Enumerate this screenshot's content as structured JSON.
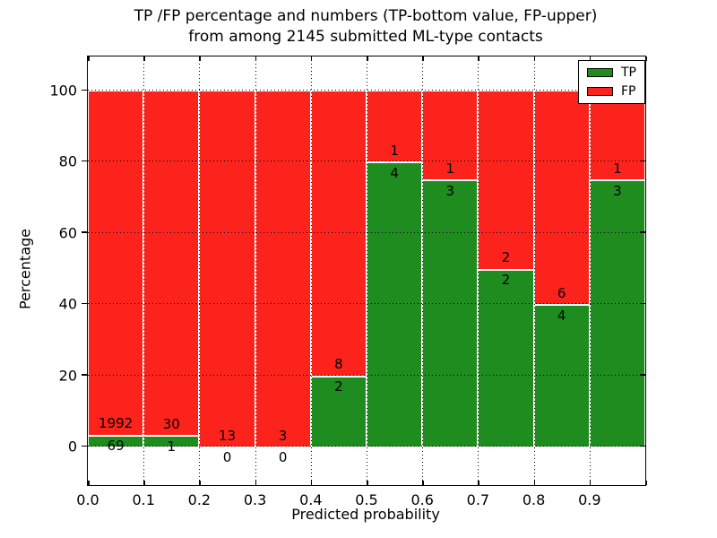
{
  "title": {
    "line1": "TP /FP percentage and numbers (TP-bottom value, FP-upper)",
    "line2": "from among 2145 submitted ML-type contacts"
  },
  "axes": {
    "xlabel": "Predicted probability",
    "ylabel": "Percentage",
    "yticks": [
      "0",
      "20",
      "40",
      "60",
      "80",
      "100"
    ],
    "ytick_values": [
      0,
      20,
      40,
      60,
      80,
      100
    ],
    "xticks": [
      "0.0",
      "0.1",
      "0.2",
      "0.3",
      "0.4",
      "0.5",
      "0.6",
      "0.7",
      "0.8",
      "0.9"
    ]
  },
  "legend": {
    "items": [
      {
        "label": "TP",
        "color": "#1f8c1f"
      },
      {
        "label": "FP",
        "color": "#fb231c"
      }
    ]
  },
  "colors": {
    "tp": "#1f8c1f",
    "fp": "#fb231c",
    "background": "#ffffff",
    "text": "#000000"
  },
  "chart_data": {
    "type": "bar",
    "stacked": true,
    "normalized_to_percent": true,
    "title": "TP /FP percentage and numbers (TP-bottom value, FP-upper) from among 2145 submitted ML-type contacts",
    "xlabel": "Predicted probability",
    "ylabel": "Percentage",
    "total_contacts": 2145,
    "bin_edges": [
      0.0,
      0.1,
      0.2,
      0.3,
      0.4,
      0.5,
      0.6,
      0.7,
      0.8,
      0.9,
      1.0
    ],
    "xlim": [
      0,
      1
    ],
    "ylim": [
      -11,
      110
    ],
    "grid": true,
    "grid_style": "dotted",
    "legend_position": "upper right",
    "series": [
      {
        "name": "TP",
        "color": "#1f8c1f",
        "counts": [
          69,
          1,
          0,
          0,
          2,
          4,
          3,
          2,
          4,
          3
        ]
      },
      {
        "name": "FP",
        "color": "#fb231c",
        "counts": [
          1992,
          30,
          13,
          3,
          8,
          1,
          1,
          2,
          6,
          1
        ]
      }
    ],
    "tp_percent_by_bin": [
      3.35,
      3.23,
      0,
      0,
      20,
      80,
      75,
      50,
      40,
      75
    ]
  }
}
